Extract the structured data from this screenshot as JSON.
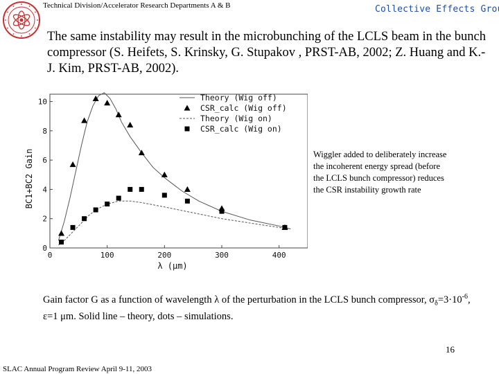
{
  "header": {
    "left": "Technical Division/Accelerator Research Departments A & B",
    "right": "Collective Effects Group"
  },
  "intro": "The same instability may result in the microbunching of the LCLS beam in the bunch compressor (S. Heifets, S. Krinsky, G. Stupakov , PRST-AB, 2002; Z. Huang and K.-J. Kim, PRST-AB, 2002).",
  "note": "Wiggler added to deliberately increase the incoherent energy spread (before the LCLS bunch compressor) reduces the CSR instability growth rate",
  "caption": {
    "line1": "Gain factor G as a function of wavelength λ of the perturbation in the LCLS bunch compressor,",
    "sigma": "σ",
    "sigma_sub": "δ",
    "eq1": "=3·10",
    "exp": "-6",
    "eq2": ", ε=1 μm. Solid line – theory, dots – simulations."
  },
  "page_number": "16",
  "footer": "SLAC Annual Program Review April 9-11, 2003",
  "colors": {
    "header_right": "#1a4fb0",
    "theory_line": "#555555",
    "marker": "#000000"
  },
  "chart_data": {
    "type": "scatter",
    "xlabel": "λ (μm)",
    "ylabel": "BC1+BC2 Gain",
    "xlim": [
      0,
      450
    ],
    "ylim": [
      0,
      10.5
    ],
    "xticks": [
      0,
      100,
      200,
      300,
      400
    ],
    "yticks": [
      0,
      2,
      4,
      6,
      8,
      10
    ],
    "legend_position": "top-right",
    "series": [
      {
        "name": "Theory (Wig off)",
        "kind": "line",
        "style": "solid",
        "x": [
          15,
          25,
          35,
          45,
          55,
          65,
          75,
          85,
          95,
          105,
          115,
          125,
          140,
          160,
          180,
          200,
          230,
          260,
          300,
          350,
          400,
          420
        ],
        "y": [
          0.5,
          1.8,
          3.4,
          5.2,
          7.0,
          8.6,
          9.7,
          10.4,
          10.6,
          10.2,
          9.5,
          8.6,
          7.6,
          6.5,
          5.5,
          4.8,
          3.9,
          3.2,
          2.5,
          1.9,
          1.5,
          1.3
        ]
      },
      {
        "name": "CSR_calc (Wig off)",
        "kind": "marker",
        "marker": "triangle",
        "x": [
          20,
          40,
          60,
          80,
          100,
          120,
          140,
          160,
          200,
          240,
          300,
          410
        ],
        "y": [
          1.0,
          5.7,
          8.7,
          10.2,
          9.9,
          9.1,
          8.4,
          6.5,
          5.0,
          4.0,
          2.7,
          1.4
        ]
      },
      {
        "name": "Theory (Wig on)",
        "kind": "line",
        "style": "dashed",
        "x": [
          15,
          25,
          40,
          55,
          70,
          85,
          100,
          120,
          140,
          160,
          200,
          250,
          300,
          350,
          400,
          420
        ],
        "y": [
          0.2,
          0.5,
          1.1,
          1.7,
          2.3,
          2.7,
          3.0,
          3.2,
          3.2,
          3.1,
          2.8,
          2.4,
          2.0,
          1.7,
          1.4,
          1.3
        ]
      },
      {
        "name": "CSR_calc (Wig on)",
        "kind": "marker",
        "marker": "square",
        "x": [
          20,
          40,
          60,
          80,
          100,
          120,
          140,
          160,
          200,
          240,
          300,
          410
        ],
        "y": [
          0.4,
          1.4,
          2.0,
          2.6,
          3.0,
          3.4,
          4.0,
          4.0,
          3.6,
          3.2,
          2.5,
          1.4
        ]
      }
    ]
  }
}
